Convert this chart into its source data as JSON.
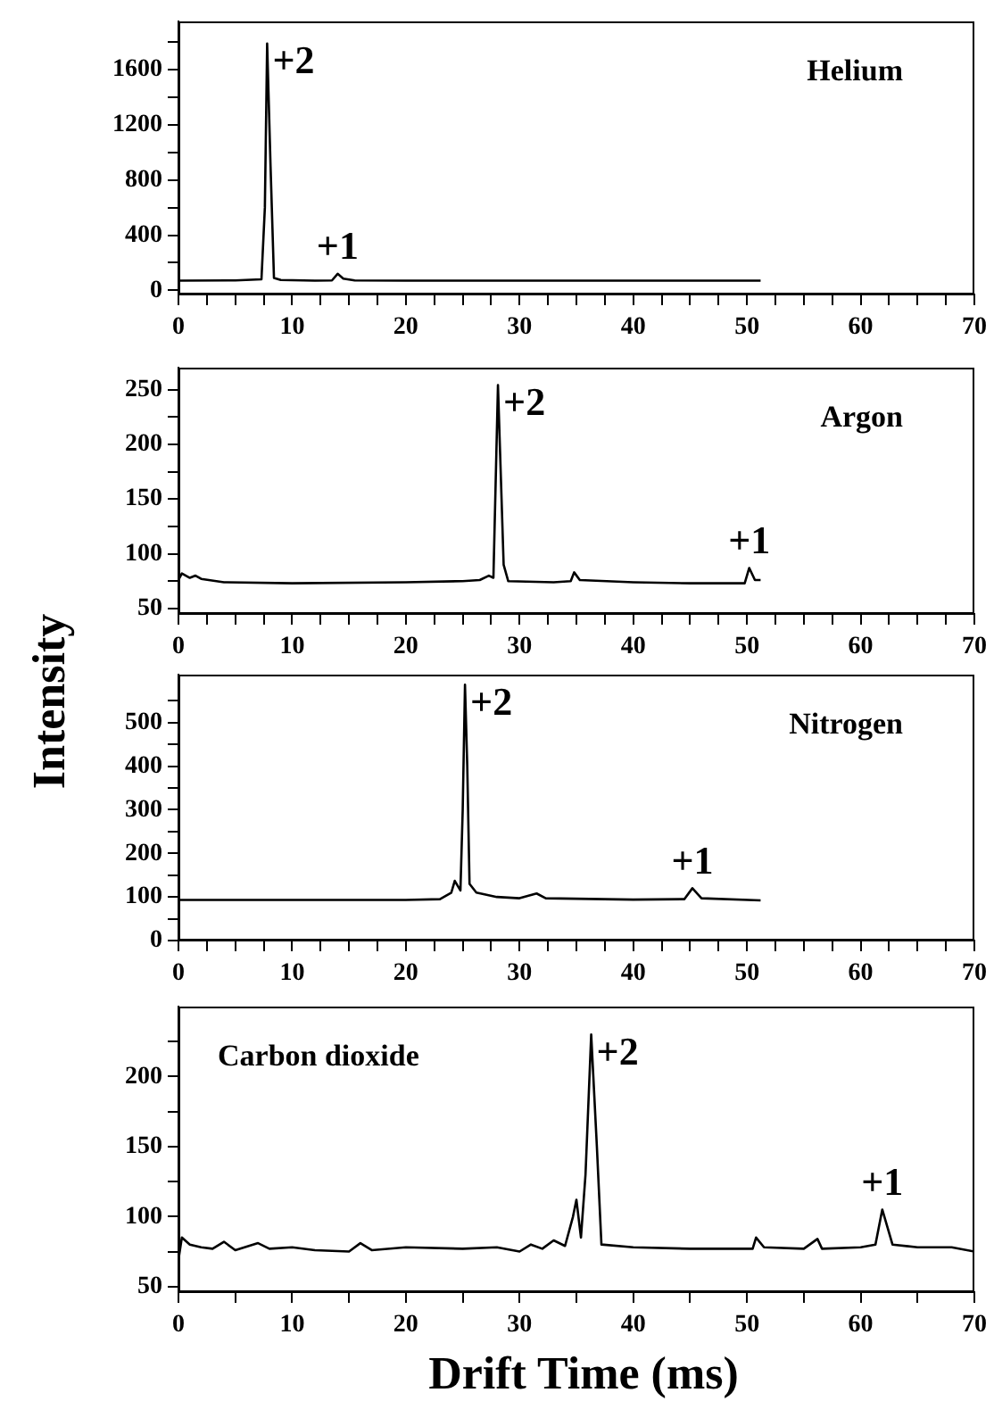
{
  "chart_data": [
    {
      "type": "line",
      "title": "Helium",
      "color": "#000000",
      "grid": false,
      "legend": false,
      "x": [
        0,
        5,
        7.3,
        7.6,
        7.8,
        8.1,
        8.4,
        9,
        12,
        13.5,
        14,
        14.5,
        15.5,
        20,
        30,
        40,
        51.2
      ],
      "values": [
        70,
        72,
        80,
        600,
        1790,
        900,
        90,
        75,
        70,
        72,
        120,
        85,
        72,
        70,
        70,
        70,
        70
      ],
      "xlim": [
        0,
        70
      ],
      "xticks": [
        0,
        {
          "value": 2.5,
          "label": null
        },
        {
          "value": 5,
          "label": null
        },
        {
          "value": 7.5,
          "label": null
        },
        10,
        {
          "value": 12.5,
          "label": null
        },
        {
          "value": 15,
          "label": null
        },
        {
          "value": 17.5,
          "label": null
        },
        20,
        {
          "value": 22.5,
          "label": null
        },
        {
          "value": 25,
          "label": null
        },
        {
          "value": 27.5,
          "label": null
        },
        30,
        {
          "value": 32.5,
          "label": null
        },
        {
          "value": 35,
          "label": null
        },
        {
          "value": 37.5,
          "label": null
        },
        40,
        {
          "value": 42.5,
          "label": null
        },
        {
          "value": 45,
          "label": null
        },
        {
          "value": 47.5,
          "label": null
        },
        50,
        {
          "value": 52.5,
          "label": null
        },
        {
          "value": 55,
          "label": null
        },
        {
          "value": 57.5,
          "label": null
        },
        60,
        {
          "value": 62.5,
          "label": null
        },
        {
          "value": 65,
          "label": null
        },
        {
          "value": 67.5,
          "label": null
        },
        70
      ],
      "ylim": [
        -30,
        1950
      ],
      "yticks": [
        0,
        {
          "value": 200,
          "label": null
        },
        400,
        {
          "value": 600,
          "label": null
        },
        800,
        {
          "value": 1000,
          "label": null
        },
        1200,
        {
          "value": 1400,
          "label": null
        },
        1600,
        {
          "value": 1800,
          "label": null
        }
      ],
      "annotations": [
        {
          "text": "+2",
          "x": 7.8,
          "y": 1790
        },
        {
          "text": "+1",
          "x": 14,
          "y": 120
        }
      ]
    },
    {
      "type": "line",
      "title": "Argon",
      "color": "#000000",
      "grid": false,
      "legend": false,
      "ylabel": "Intensity",
      "x": [
        0,
        0.3,
        1,
        1.5,
        2,
        4,
        10,
        20,
        25,
        26.5,
        27.3,
        27.7,
        28.1,
        28.6,
        29,
        33,
        34.5,
        34.8,
        35.3,
        40,
        45,
        49.8,
        50.2,
        50.7,
        51.2
      ],
      "values": [
        76,
        82,
        78,
        80,
        77,
        74,
        73,
        74,
        75,
        76,
        80,
        78,
        254,
        90,
        75,
        74,
        75,
        83,
        76,
        74,
        73,
        73,
        87,
        76,
        76
      ],
      "xlim": [
        0,
        70
      ],
      "xticks": [
        0,
        {
          "value": 2.5,
          "label": null
        },
        {
          "value": 5,
          "label": null
        },
        {
          "value": 7.5,
          "label": null
        },
        10,
        {
          "value": 12.5,
          "label": null
        },
        {
          "value": 15,
          "label": null
        },
        {
          "value": 17.5,
          "label": null
        },
        20,
        {
          "value": 22.5,
          "label": null
        },
        {
          "value": 25,
          "label": null
        },
        {
          "value": 27.5,
          "label": null
        },
        30,
        {
          "value": 32.5,
          "label": null
        },
        {
          "value": 35,
          "label": null
        },
        {
          "value": 37.5,
          "label": null
        },
        40,
        {
          "value": 42.5,
          "label": null
        },
        {
          "value": 45,
          "label": null
        },
        {
          "value": 47.5,
          "label": null
        },
        50,
        {
          "value": 52.5,
          "label": null
        },
        {
          "value": 55,
          "label": null
        },
        {
          "value": 57.5,
          "label": null
        },
        60,
        {
          "value": 62.5,
          "label": null
        },
        {
          "value": 65,
          "label": null
        },
        {
          "value": 67.5,
          "label": null
        },
        70
      ],
      "ylim": [
        45,
        270
      ],
      "yticks": [
        50,
        {
          "value": 75,
          "label": null
        },
        100,
        {
          "value": 125,
          "label": null
        },
        150,
        {
          "value": 175,
          "label": null
        },
        200,
        {
          "value": 225,
          "label": null
        },
        250
      ],
      "annotations": [
        {
          "text": "+2",
          "x": 28.1,
          "y": 254
        },
        {
          "text": "+1",
          "x": 50.2,
          "y": 87
        }
      ]
    },
    {
      "type": "line",
      "title": "Nitrogen",
      "color": "#000000",
      "grid": false,
      "legend": false,
      "x": [
        0,
        10,
        20,
        23,
        24,
        24.3,
        24.8,
        25,
        25.2,
        25.4,
        25.6,
        26.2,
        28,
        30,
        31.5,
        32.3,
        40,
        44.5,
        45.2,
        46,
        51.2
      ],
      "values": [
        93,
        93,
        93,
        95,
        110,
        137,
        115,
        300,
        587,
        400,
        130,
        110,
        100,
        97,
        108,
        97,
        94,
        95,
        120,
        97,
        92
      ],
      "xlim": [
        0,
        70
      ],
      "xticks": [
        0,
        {
          "value": 2.5,
          "label": null
        },
        {
          "value": 5,
          "label": null
        },
        {
          "value": 7.5,
          "label": null
        },
        10,
        {
          "value": 12.5,
          "label": null
        },
        {
          "value": 15,
          "label": null
        },
        {
          "value": 17.5,
          "label": null
        },
        20,
        {
          "value": 22.5,
          "label": null
        },
        {
          "value": 25,
          "label": null
        },
        {
          "value": 27.5,
          "label": null
        },
        30,
        {
          "value": 32.5,
          "label": null
        },
        {
          "value": 35,
          "label": null
        },
        {
          "value": 37.5,
          "label": null
        },
        40,
        {
          "value": 42.5,
          "label": null
        },
        {
          "value": 45,
          "label": null
        },
        {
          "value": 47.5,
          "label": null
        },
        50,
        {
          "value": 52.5,
          "label": null
        },
        {
          "value": 55,
          "label": null
        },
        {
          "value": 57.5,
          "label": null
        },
        60,
        {
          "value": 62.5,
          "label": null
        },
        {
          "value": 65,
          "label": null
        },
        {
          "value": 67.5,
          "label": null
        },
        70
      ],
      "ylim": [
        0,
        610
      ],
      "yticks": [
        0,
        {
          "value": 50,
          "label": null
        },
        100,
        {
          "value": 150,
          "label": null
        },
        200,
        {
          "value": 250,
          "label": null
        },
        300,
        {
          "value": 350,
          "label": null
        },
        400,
        {
          "value": 450,
          "label": null
        },
        500,
        {
          "value": 550,
          "label": null
        }
      ],
      "annotations": [
        {
          "text": "+2",
          "x": 25.2,
          "y": 587
        },
        {
          "text": "+1",
          "x": 45.2,
          "y": 120
        }
      ]
    },
    {
      "type": "line",
      "title": "Carbon dioxide",
      "color": "#000000",
      "grid": false,
      "legend": false,
      "xlabel": "Drift Time (ms)",
      "x": [
        0,
        0.3,
        1,
        2,
        3,
        4,
        5,
        7,
        8,
        10,
        12,
        15,
        16,
        17,
        20,
        25,
        28,
        30,
        31,
        32,
        33,
        34,
        34.7,
        35,
        35.4,
        35.8,
        36.3,
        36.8,
        37.2,
        40,
        45,
        48,
        50.5,
        50.8,
        51.5,
        55,
        56.2,
        56.6,
        60,
        61.3,
        61.9,
        62.8,
        65,
        68,
        70
      ],
      "values": [
        69,
        85,
        80,
        78,
        77,
        82,
        76,
        81,
        77,
        78,
        76,
        75,
        81,
        76,
        78,
        77,
        78,
        75,
        80,
        77,
        83,
        79,
        100,
        112,
        85,
        130,
        230,
        150,
        80,
        78,
        77,
        77,
        77,
        85,
        78,
        77,
        84,
        77,
        78,
        80,
        105,
        80,
        78,
        78,
        75
      ],
      "xlim": [
        0,
        70
      ],
      "xticks": [
        0,
        {
          "value": 5,
          "label": null
        },
        10,
        {
          "value": 15,
          "label": null
        },
        20,
        {
          "value": 25,
          "label": null
        },
        30,
        {
          "value": 35,
          "label": null
        },
        40,
        {
          "value": 45,
          "label": null
        },
        50,
        {
          "value": 55,
          "label": null
        },
        60,
        {
          "value": 65,
          "label": null
        },
        70
      ],
      "ylim": [
        46,
        250
      ],
      "yticks": [
        50,
        {
          "value": 75,
          "label": null
        },
        100,
        {
          "value": 125,
          "label": null
        },
        150,
        {
          "value": 175,
          "label": null
        },
        200,
        {
          "value": 225,
          "label": null
        }
      ],
      "annotations": [
        {
          "text": "+2",
          "x": 36.3,
          "y": 230
        },
        {
          "text": "+1",
          "x": 61.9,
          "y": 105
        }
      ]
    }
  ]
}
